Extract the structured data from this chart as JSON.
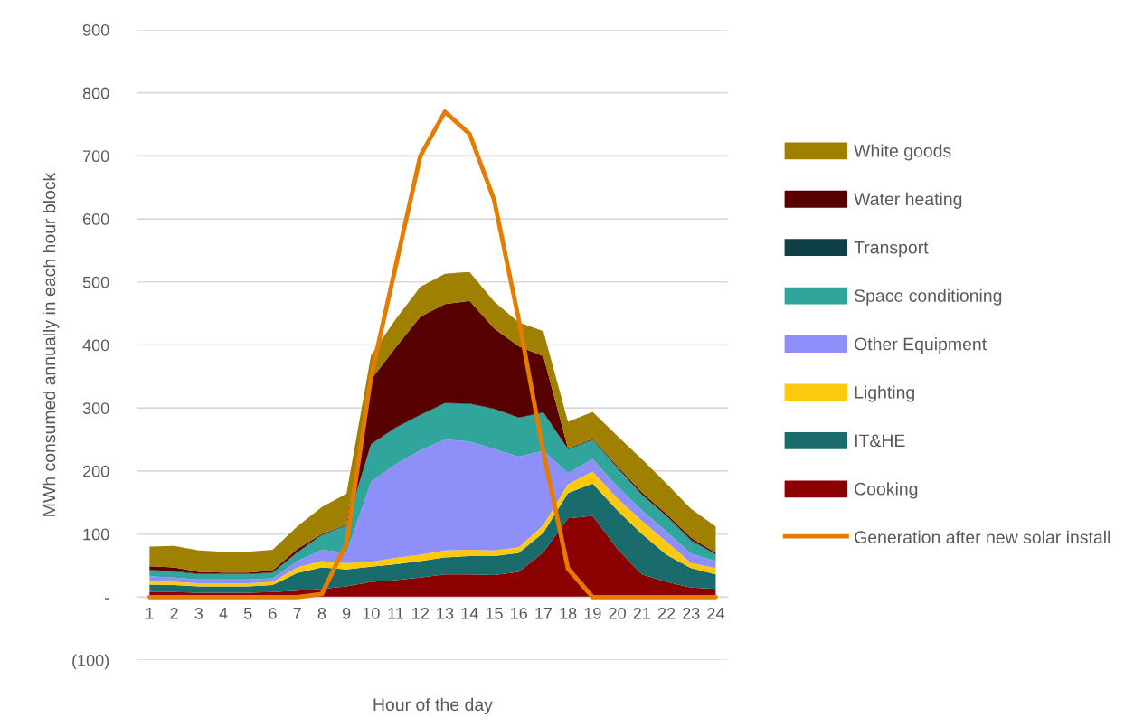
{
  "chart_data": {
    "type": "area",
    "stacked": true,
    "xlabel": "Hour of the day",
    "ylabel": "MWh consumed annually in each hour block",
    "categories": [
      "1",
      "2",
      "3",
      "4",
      "5",
      "6",
      "7",
      "8",
      "9",
      "10",
      "11",
      "12",
      "13",
      "14",
      "15",
      "16",
      "17",
      "18",
      "19",
      "20",
      "21",
      "22",
      "23",
      "24"
    ],
    "ylim": [
      -100,
      900
    ],
    "yticks": [
      {
        "value": -100,
        "label": "(100)"
      },
      {
        "value": 0,
        "label": "-"
      },
      100,
      200,
      300,
      400,
      500,
      600,
      700,
      800,
      900
    ],
    "grid": "y",
    "legend": "right",
    "series": [
      {
        "name": "Cooking",
        "color": "#8b0000",
        "values": [
          8,
          8,
          7,
          7,
          7,
          8,
          10,
          13,
          17,
          24,
          27,
          31,
          36,
          36,
          35,
          40,
          71,
          125,
          129,
          77,
          36,
          24,
          15,
          13
        ]
      },
      {
        "name": "IT&HE",
        "color": "#1a6b6b",
        "values": [
          12,
          11,
          10,
          10,
          10,
          11,
          28,
          34,
          27,
          24,
          25,
          26,
          27,
          29,
          30,
          30,
          31,
          40,
          51,
          61,
          64,
          43,
          31,
          23
        ]
      },
      {
        "name": "Lighting",
        "color": "#ffc90e",
        "values": [
          6,
          5,
          5,
          5,
          5,
          5,
          9,
          10,
          10,
          8,
          10,
          10,
          11,
          10,
          9,
          9,
          12,
          14,
          19,
          19,
          21,
          21,
          8,
          10
        ]
      },
      {
        "name": "Other Equipment",
        "color": "#8f8ffa",
        "values": [
          7,
          7,
          6,
          6,
          6,
          6,
          10,
          18,
          16,
          127,
          149,
          166,
          176,
          172,
          161,
          144,
          118,
          18,
          20,
          19,
          17,
          16,
          15,
          11
        ]
      },
      {
        "name": "Space conditioning",
        "color": "#2fa59b",
        "values": [
          9,
          9,
          8,
          8,
          8,
          8,
          13,
          23,
          43,
          59,
          57,
          55,
          57,
          59,
          63,
          61,
          60,
          37,
          30,
          29,
          24,
          24,
          20,
          10
        ]
      },
      {
        "name": "Transport",
        "color": "#0f4045",
        "values": [
          1,
          1,
          1,
          1,
          1,
          1,
          1,
          1,
          1,
          1,
          1,
          1,
          1,
          1,
          1,
          1,
          1,
          1,
          1,
          1,
          1,
          1,
          2,
          1
        ]
      },
      {
        "name": "Water heating",
        "color": "#560000",
        "values": [
          6,
          6,
          3,
          2,
          2,
          3,
          5,
          1,
          1,
          102,
          127,
          156,
          157,
          163,
          127,
          113,
          89,
          1,
          1,
          2,
          3,
          3,
          3,
          2
        ]
      },
      {
        "name": "White goods",
        "color": "#a08000",
        "values": [
          31,
          34,
          34,
          33,
          33,
          33,
          36,
          43,
          49,
          39,
          45,
          47,
          48,
          46,
          43,
          38,
          40,
          42,
          43,
          48,
          53,
          48,
          46,
          42
        ]
      },
      {
        "name": "Generation after new solar install",
        "type": "line",
        "color": "#e57c00",
        "values": [
          0,
          0,
          0,
          0,
          0,
          0,
          0,
          5,
          85,
          350,
          525,
          700,
          770,
          735,
          630,
          440,
          230,
          45,
          0,
          0,
          0,
          0,
          0,
          0
        ]
      }
    ]
  }
}
